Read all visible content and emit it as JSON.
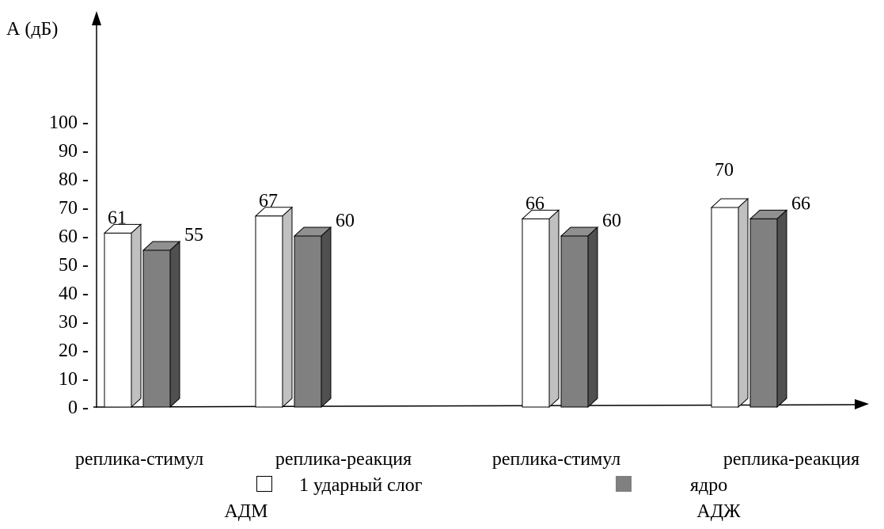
{
  "chart_data": {
    "type": "bar",
    "ylabel": "А (дБ)",
    "ylim": [
      0,
      100
    ],
    "yticks": [
      "0 -",
      "10 -",
      "20 -",
      "30 -",
      "40 -",
      "50 -",
      "60 -",
      "70 -",
      "80 -",
      "90 -",
      "100 -"
    ],
    "categories": [
      "реплика-стимул",
      "реплика-реакция",
      "реплика-стимул",
      "реплика-реакция"
    ],
    "groups": [
      "АДМ",
      "АДЖ"
    ],
    "series": [
      {
        "name": "1 ударный слог",
        "values": [
          61,
          67,
          66,
          70
        ],
        "color": "#ffffff"
      },
      {
        "name": "ядро",
        "values": [
          55,
          60,
          60,
          66
        ],
        "color": "#808080"
      }
    ],
    "legend": "bottom",
    "grid": false
  }
}
